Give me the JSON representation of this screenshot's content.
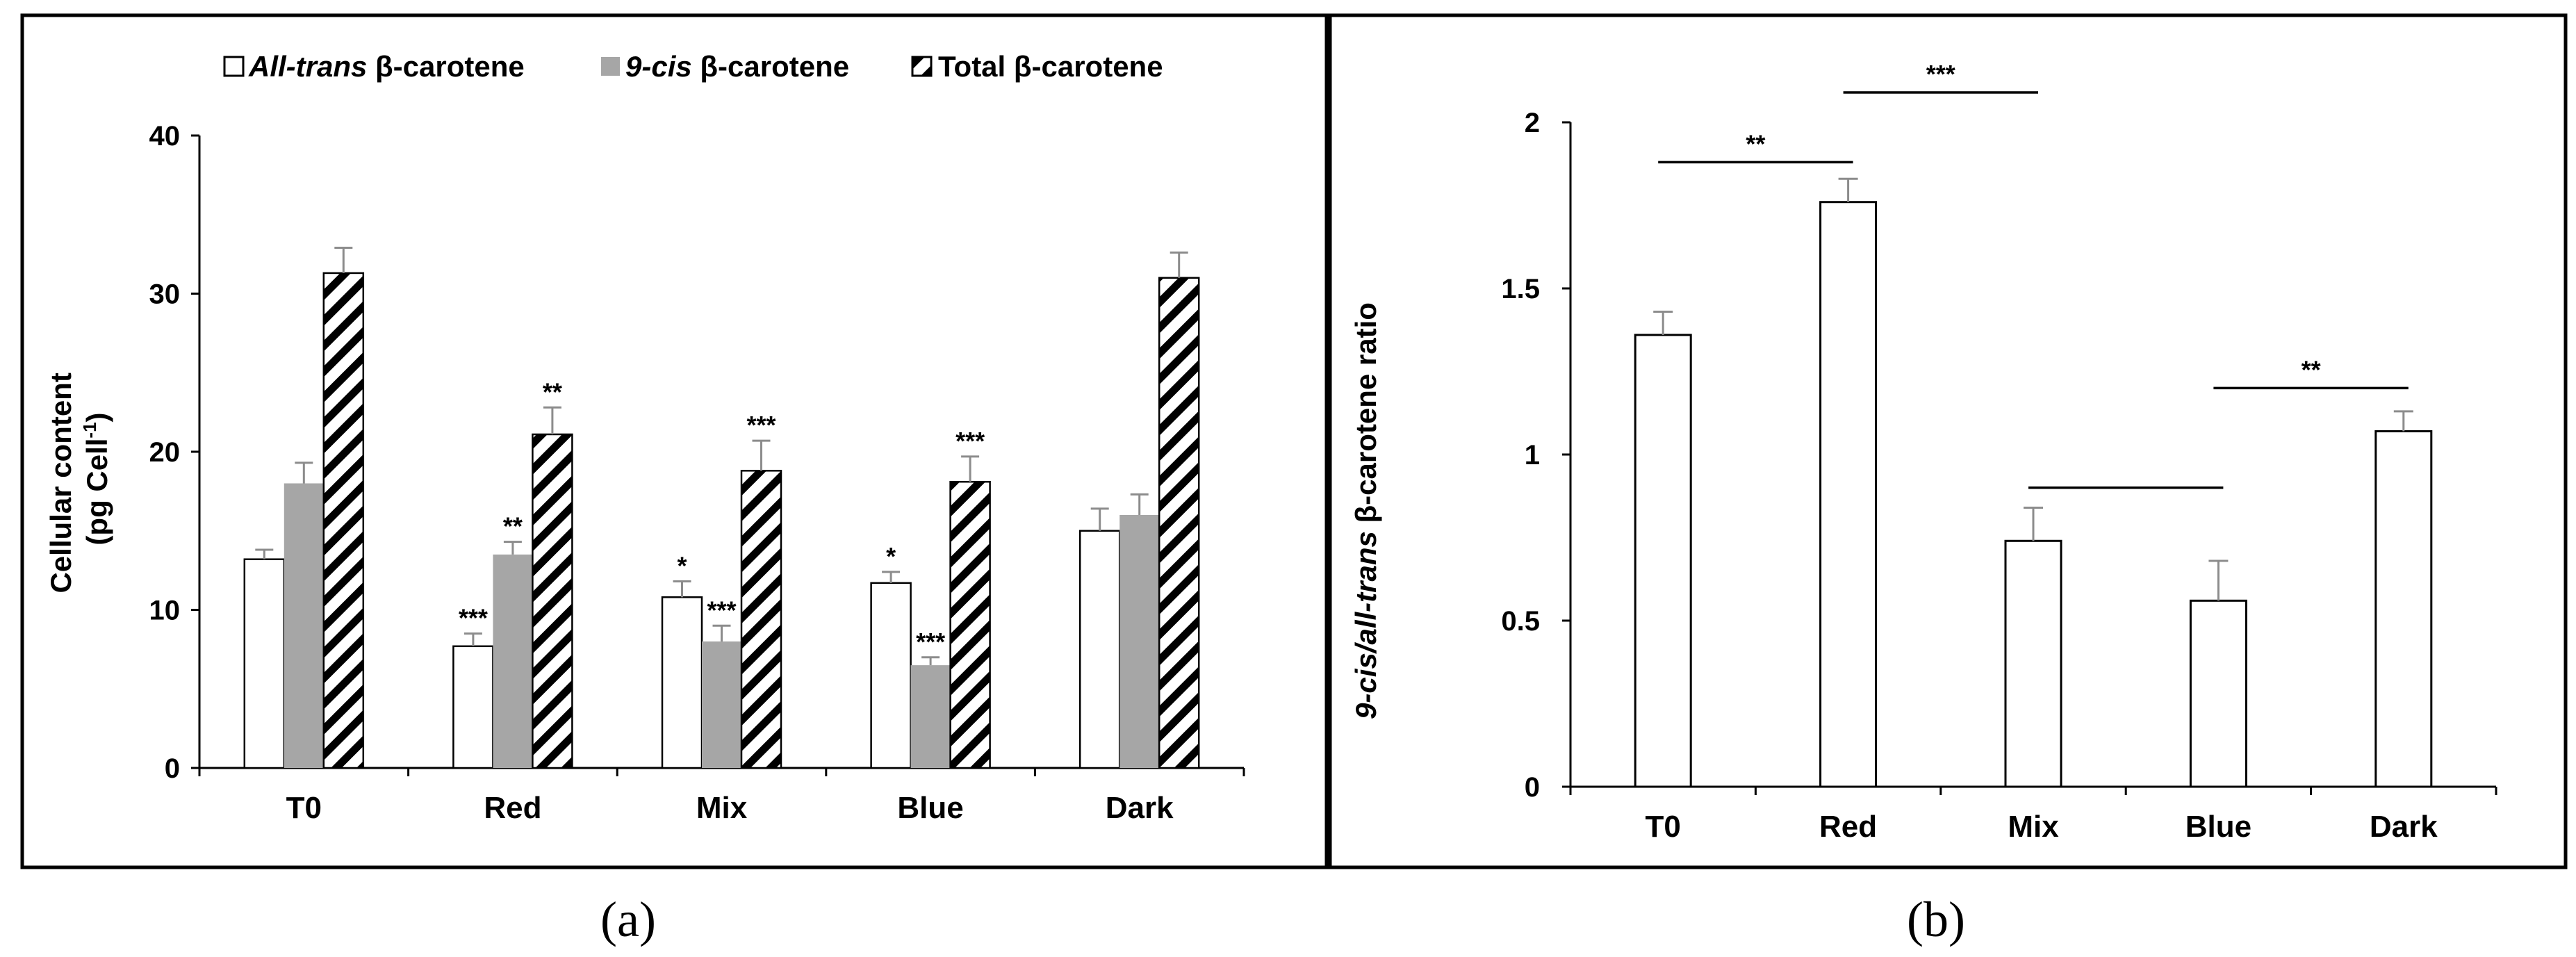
{
  "colors": {
    "white_fill": "#ffffff",
    "gray_fill": "#a6a6a6",
    "stroke": "#000000",
    "errorbar": "#8c8c8c"
  },
  "panels": {
    "a": {
      "label": "(a)"
    },
    "b": {
      "label": "(b)"
    }
  },
  "chart_data": [
    {
      "id": "a",
      "type": "bar",
      "title": "",
      "xlabel": "",
      "ylabel": {
        "line1": "Cellular content",
        "line2_prefix": "(pg Cell",
        "line2_sup": "-1",
        "line2_suffix": ")"
      },
      "ylim": [
        0,
        40
      ],
      "yticks": [
        0,
        10,
        20,
        30,
        40
      ],
      "categories": [
        "T0",
        "Red",
        "Mix",
        "Blue",
        "Dark"
      ],
      "legend": [
        {
          "italic": "All-trans",
          "rest": " β-carotene"
        },
        {
          "italic": "9-cis",
          "rest": " β-carotene"
        },
        {
          "italic": "",
          "rest": "Total β-carotene"
        }
      ],
      "series": [
        {
          "name": "All-trans β-carotene",
          "fill": "white",
          "values": [
            13.2,
            7.7,
            10.8,
            11.7,
            15.0
          ],
          "errors": [
            0.6,
            0.8,
            1.0,
            0.7,
            1.4
          ],
          "significance": [
            "",
            "***",
            "*",
            "*",
            ""
          ]
        },
        {
          "name": "9-cis β-carotene",
          "fill": "gray",
          "values": [
            18.0,
            13.5,
            8.0,
            6.5,
            16.0
          ],
          "errors": [
            1.3,
            0.8,
            1.0,
            0.5,
            1.3
          ],
          "significance": [
            "",
            "**",
            "***",
            "***",
            ""
          ]
        },
        {
          "name": "Total β-carotene",
          "fill": "hatch",
          "values": [
            31.3,
            21.1,
            18.8,
            18.1,
            31.0
          ],
          "errors": [
            1.6,
            1.7,
            1.9,
            1.6,
            1.6
          ],
          "significance": [
            "",
            "**",
            "***",
            "***",
            ""
          ]
        }
      ]
    },
    {
      "id": "b",
      "type": "bar",
      "title": "",
      "xlabel": "",
      "ylabel": {
        "italic": "9-cis/all-trans",
        "rest": " β-carotene ratio"
      },
      "ylim": [
        0,
        2
      ],
      "yticks": [
        "0",
        "0.5",
        "1",
        "1.5",
        "2"
      ],
      "categories": [
        "T0",
        "Red",
        "Mix",
        "Blue",
        "Dark"
      ],
      "series": [
        {
          "name": "9-cis/all-trans β-carotene ratio",
          "values": [
            1.36,
            1.76,
            0.74,
            0.56,
            1.07
          ],
          "errors": [
            0.07,
            0.07,
            0.1,
            0.12,
            0.06
          ]
        }
      ],
      "comparisons": [
        {
          "from": "T0",
          "to": "Red",
          "y": 1.88,
          "label": "**"
        },
        {
          "from": "Red",
          "to": "Mix",
          "y": 2.09,
          "label": "***"
        },
        {
          "from": "Mix",
          "to": "Blue",
          "y": 0.9,
          "label": ""
        },
        {
          "from": "Blue",
          "to": "Dark",
          "y": 1.2,
          "label": "**"
        }
      ]
    }
  ]
}
